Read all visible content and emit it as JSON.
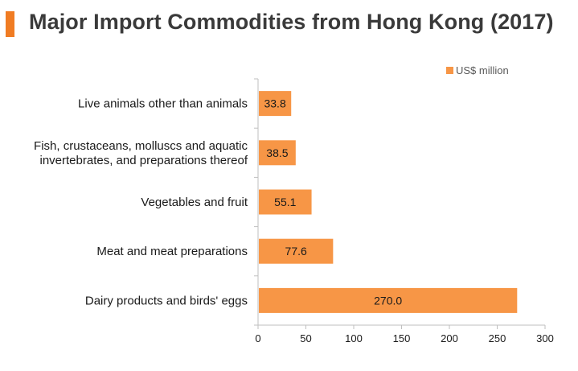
{
  "header": {
    "title": "Major Import Commodities from Hong Kong (2017)"
  },
  "chart_data": {
    "type": "bar",
    "orientation": "horizontal",
    "title": "Major Import Commodities from Hong Kong (2017)",
    "xlabel": "",
    "ylabel": "",
    "categories": [
      "Live animals other than animals",
      [
        "Fish, crustaceans, molluscs and aquatic",
        "invertebrates, and preparations thereof"
      ],
      "Vegetables and fruit",
      "Meat and meat preparations",
      "Dairy products and birds' eggs"
    ],
    "series": [
      {
        "name": "US$ million",
        "values": [
          33.8,
          38.5,
          55.1,
          77.6,
          270.0
        ],
        "labels": [
          "33.8",
          "38.5",
          "55.1",
          "77.6",
          "270.0"
        ]
      }
    ],
    "xlim": [
      0,
      300
    ],
    "xticks": [
      0,
      50,
      100,
      150,
      200,
      250,
      300
    ],
    "grid": false,
    "legend_position": "top-right",
    "colors": {
      "bar": "#f79646",
      "accent": "#f07c23",
      "axis": "#bfbfbf"
    }
  }
}
